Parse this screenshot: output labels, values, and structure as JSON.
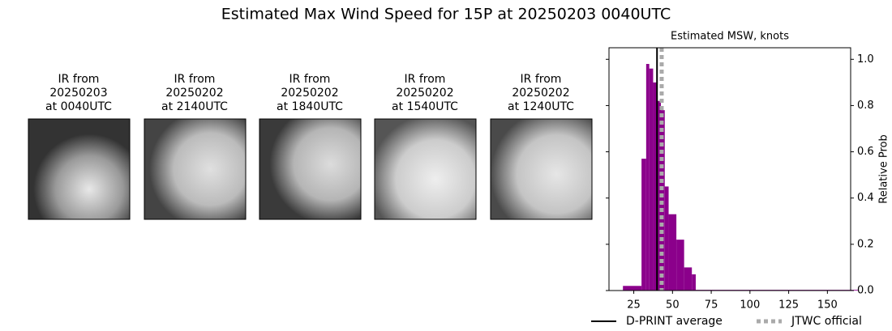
{
  "title": "Estimated Max Wind Speed for 15P at 20250203 0040UTC",
  "images": [
    {
      "lines": [
        "IR from",
        "20250203",
        "at 0040UTC"
      ]
    },
    {
      "lines": [
        "IR from",
        "20250202",
        "at 2140UTC"
      ]
    },
    {
      "lines": [
        "IR from",
        "20250202",
        "at 1840UTC"
      ]
    },
    {
      "lines": [
        "IR from",
        "20250202",
        "at 1540UTC"
      ]
    },
    {
      "lines": [
        "IR from",
        "20250202",
        "at 1240UTC"
      ]
    }
  ],
  "chart_data": {
    "type": "histogram",
    "title": "Estimated MSW, knots",
    "y2label": "Relative Prob",
    "bins": [
      18,
      30,
      33,
      35,
      37.5,
      40,
      42.5,
      45,
      47.5,
      52.5,
      57.5,
      62.5,
      65,
      170
    ],
    "values": [
      0.02,
      0.57,
      0.98,
      0.96,
      0.9,
      0.82,
      0.78,
      0.45,
      0.33,
      0.22,
      0.1,
      0.07,
      0.003
    ],
    "color": "#8b008b",
    "xlim": [
      9,
      165
    ],
    "xticks": [
      25,
      50,
      75,
      100,
      125,
      150
    ],
    "ylim": [
      0,
      1.05
    ],
    "yticks": [
      {
        "value": 0,
        "label": "0.0"
      },
      0.2,
      0.4,
      0.6,
      0.8,
      {
        "value": 1,
        "label": "1.0"
      }
    ],
    "reference_lines": [
      {
        "name": "D-PRINT average",
        "value": 40,
        "color": "#000000",
        "style": "solid"
      },
      {
        "name": "JTWC official",
        "value": 43,
        "color": "#aaaaaa",
        "style": "dotted"
      }
    ]
  }
}
